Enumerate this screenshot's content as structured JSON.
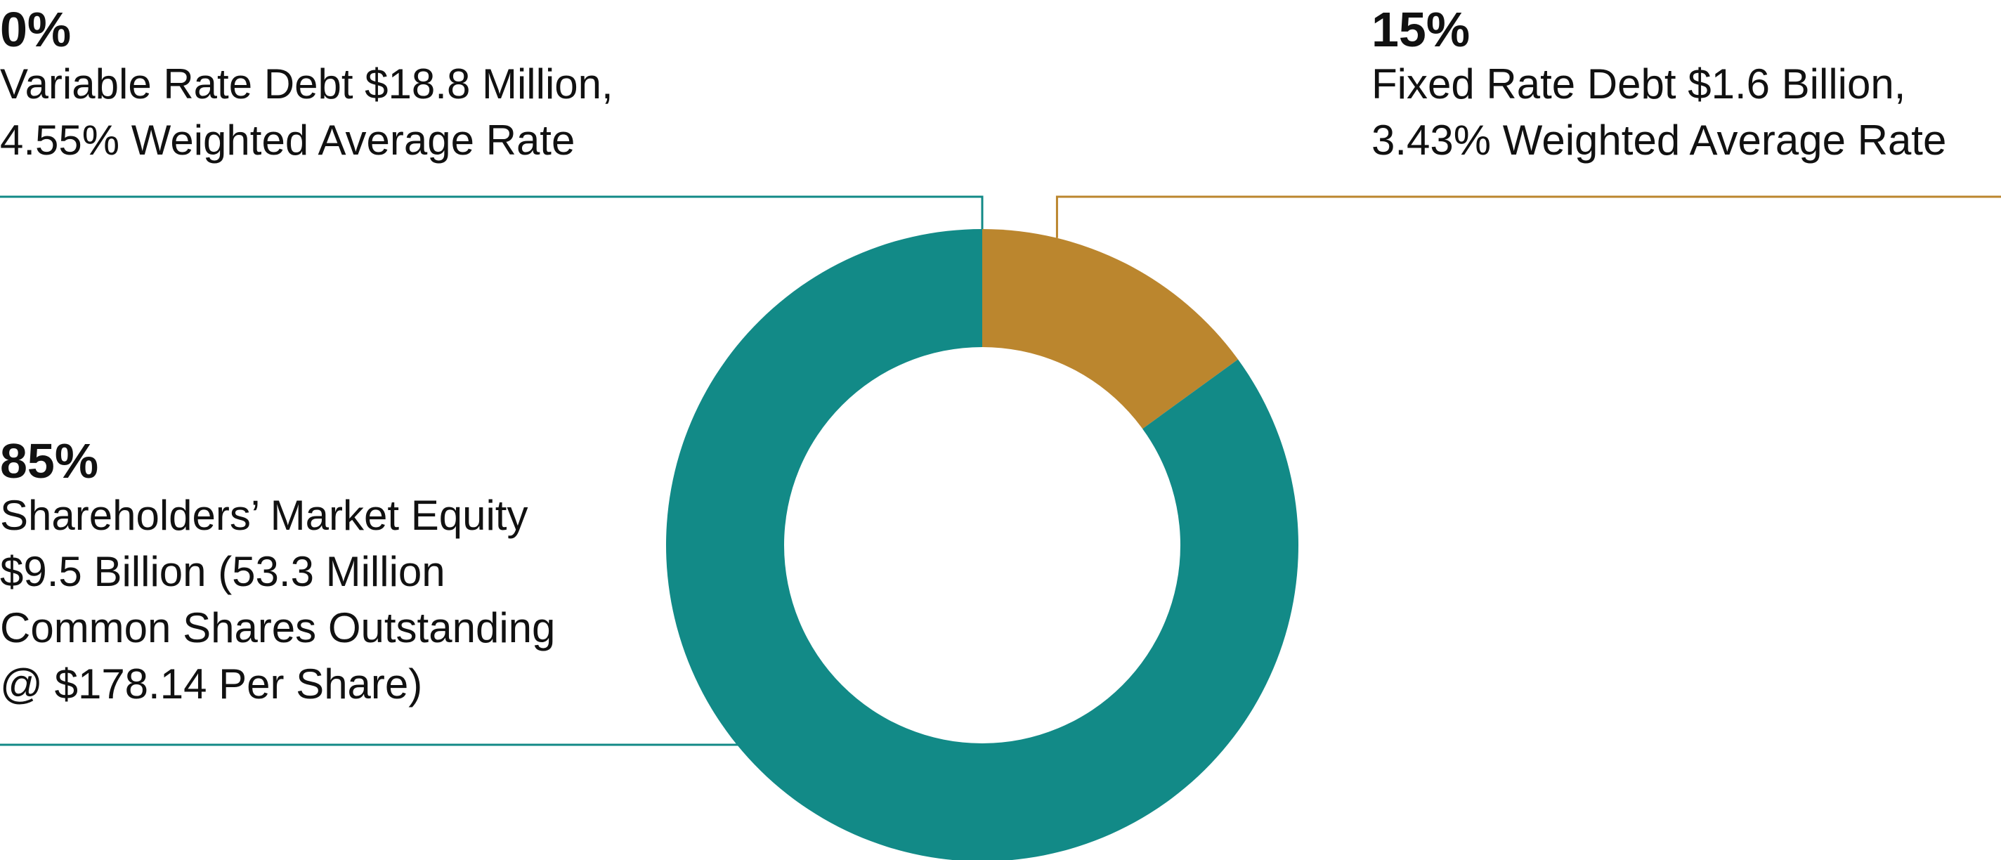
{
  "colors": {
    "equity": "#128a87",
    "fixed_debt": "#bb862e",
    "variable_debt": "#128a87",
    "hole": "#ffffff"
  },
  "chart_data": {
    "type": "pie",
    "donut": true,
    "start": "top",
    "direction": "clockwise",
    "slices": [
      {
        "id": "fixed",
        "percent_label": "15%",
        "value": 15,
        "lines": [
          "Fixed Rate Debt $1.6 Billion,",
          "3.43% Weighted Average Rate"
        ],
        "color": "#bb862e"
      },
      {
        "id": "equity",
        "percent_label": "85%",
        "value": 85,
        "lines": [
          "Shareholders’ Market Equity",
          "$9.5 Billion (53.3 Million",
          "Common Shares Outstanding",
          "@ $178.14 Per Share)"
        ],
        "color": "#128a87"
      },
      {
        "id": "variable",
        "percent_label": "0%",
        "value": 0,
        "lines": [
          "Variable Rate Debt $18.8 Million,",
          "4.55% Weighted Average Rate"
        ],
        "color": "#128a87"
      }
    ]
  }
}
